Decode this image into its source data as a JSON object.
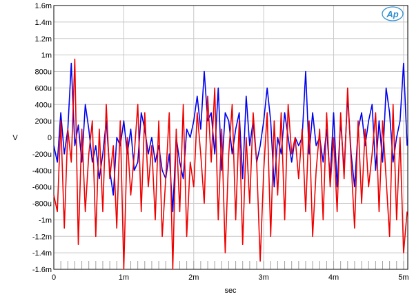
{
  "chart_data": {
    "type": "line",
    "title": "",
    "xlabel": "sec",
    "ylabel": "V",
    "xlim": [
      0,
      0.00506
    ],
    "ylim": [
      -0.0016,
      0.0016
    ],
    "x_ticks": [
      {
        "value": 0,
        "label": "0"
      },
      {
        "value": 0.001,
        "label": "1m"
      },
      {
        "value": 0.002,
        "label": "2m"
      },
      {
        "value": 0.003,
        "label": "3m"
      },
      {
        "value": 0.004,
        "label": "4m"
      },
      {
        "value": 0.005,
        "label": "5m"
      }
    ],
    "y_ticks": [
      {
        "value": 0.0016,
        "label": "1.6m"
      },
      {
        "value": 0.0014,
        "label": "1.4m"
      },
      {
        "value": 0.0012,
        "label": "1.2m"
      },
      {
        "value": 0.001,
        "label": "1m"
      },
      {
        "value": 0.0008,
        "label": "800u"
      },
      {
        "value": 0.0006,
        "label": "600u"
      },
      {
        "value": 0.0004,
        "label": "400u"
      },
      {
        "value": 0.0002,
        "label": "200u"
      },
      {
        "value": 0,
        "label": "0"
      },
      {
        "value": -0.0002,
        "label": "-200u"
      },
      {
        "value": -0.0004,
        "label": "-400u"
      },
      {
        "value": -0.0006,
        "label": "-600u"
      },
      {
        "value": -0.0008,
        "label": "-800u"
      },
      {
        "value": -0.001,
        "label": "-1m"
      },
      {
        "value": -0.0012,
        "label": "-1.2m"
      },
      {
        "value": -0.0014,
        "label": "-1.4m"
      },
      {
        "value": -0.0016,
        "label": "-1.6m"
      }
    ],
    "grid": true,
    "series": [
      {
        "color": "#0000ee",
        "x": [
          0,
          5e-05,
          0.0001,
          0.00015,
          0.0002,
          0.00025,
          0.0003,
          0.00035,
          0.0004,
          0.00045,
          0.0005,
          0.00055,
          0.0006,
          0.00065,
          0.0007,
          0.00075,
          0.0008,
          0.00085,
          0.0009,
          0.00095,
          0.001,
          0.00105,
          0.0011,
          0.00115,
          0.0012,
          0.00125,
          0.0013,
          0.00135,
          0.0014,
          0.00145,
          0.0015,
          0.00155,
          0.0016,
          0.00165,
          0.0017,
          0.00175,
          0.0018,
          0.00185,
          0.0019,
          0.00195,
          0.002,
          0.00205,
          0.0021,
          0.00215,
          0.0022,
          0.00225,
          0.0023,
          0.00235,
          0.0024,
          0.00245,
          0.0025,
          0.00255,
          0.0026,
          0.00265,
          0.0027,
          0.00275,
          0.0028,
          0.00285,
          0.0029,
          0.00295,
          0.003,
          0.00305,
          0.0031,
          0.00315,
          0.0032,
          0.00325,
          0.0033,
          0.00335,
          0.0034,
          0.00345,
          0.0035,
          0.00355,
          0.0036,
          0.00365,
          0.0037,
          0.00375,
          0.0038,
          0.00385,
          0.0039,
          0.00395,
          0.004,
          0.00405,
          0.0041,
          0.00415,
          0.0042,
          0.00425,
          0.0043,
          0.00435,
          0.0044,
          0.00445,
          0.0045,
          0.00455,
          0.0046,
          0.00465,
          0.0047,
          0.00475,
          0.0048,
          0.00485,
          0.0049,
          0.00495,
          0.005,
          0.00505
        ],
        "y": [
          -0.0001,
          -0.0003,
          0.0003,
          -0.0002,
          0.0001,
          0.0009,
          -0.0001,
          0.00015,
          -0.0003,
          0.0004,
          0.0001,
          -0.0003,
          -0.0001,
          -0.0005,
          -0.0002,
          0.0002,
          -0.0004,
          -0.0007,
          0.0,
          -0.0001,
          0.0002,
          -0.0002,
          0.0001,
          -0.0004,
          -0.0003,
          0.0003,
          0.0001,
          -0.0002,
          0.0,
          -0.0003,
          -0.0001,
          -0.0004,
          -0.0005,
          -0.0002,
          -0.0009,
          0.0,
          -0.0003,
          -0.0005,
          0.0001,
          0.0,
          0.0002,
          0.0005,
          0.0001,
          0.0008,
          0.0002,
          0.0003,
          -0.0002,
          0.0006,
          -0.0004,
          0.0003,
          0.0002,
          -0.0002,
          0.0001,
          0.0003,
          -0.0005,
          0.0005,
          -0.0001,
          0.0002,
          -0.0003,
          -0.0001,
          0.0002,
          0.0006,
          0.0002,
          -0.0006,
          0.0,
          -0.0002,
          0.0003,
          0.0,
          -0.0003,
          0.0,
          -0.0001,
          0.0,
          0.0008,
          -0.0002,
          0.0003,
          -0.0001,
          0.0,
          -0.0003,
          0.0001,
          -0.0005,
          0.0003,
          -0.0006,
          0.0002,
          -0.0004,
          0.0005,
          -0.0002,
          -0.0006,
          0.0001,
          0.0003,
          -0.0001,
          0.0002,
          0.0004,
          -0.0004,
          0.0002,
          -0.0003,
          0.0006,
          0.0003,
          -0.0003,
          0.0,
          0.0002,
          0.0009,
          -0.0001
        ],
        "name": ""
      },
      {
        "color": "#ee0000",
        "x": [
          0,
          5e-05,
          0.0001,
          0.00015,
          0.0002,
          0.00025,
          0.0003,
          0.00035,
          0.0004,
          0.00045,
          0.0005,
          0.00055,
          0.0006,
          0.00065,
          0.0007,
          0.00075,
          0.0008,
          0.00085,
          0.0009,
          0.00095,
          0.001,
          0.00105,
          0.0011,
          0.00115,
          0.0012,
          0.00125,
          0.0013,
          0.00135,
          0.0014,
          0.00145,
          0.0015,
          0.00155,
          0.0016,
          0.00165,
          0.0017,
          0.00175,
          0.0018,
          0.00185,
          0.0019,
          0.00195,
          0.002,
          0.00205,
          0.0021,
          0.00215,
          0.0022,
          0.00225,
          0.0023,
          0.00235,
          0.0024,
          0.00245,
          0.0025,
          0.00255,
          0.0026,
          0.00265,
          0.0027,
          0.00275,
          0.0028,
          0.00285,
          0.0029,
          0.00295,
          0.003,
          0.00305,
          0.0031,
          0.00315,
          0.0032,
          0.00325,
          0.0033,
          0.00335,
          0.0034,
          0.00345,
          0.0035,
          0.00355,
          0.0036,
          0.00365,
          0.0037,
          0.00375,
          0.0038,
          0.00385,
          0.0039,
          0.00395,
          0.004,
          0.00405,
          0.0041,
          0.00415,
          0.0042,
          0.00425,
          0.0043,
          0.00435,
          0.0044,
          0.00445,
          0.0045,
          0.00455,
          0.0046,
          0.00465,
          0.0047,
          0.00475,
          0.0048,
          0.00485,
          0.0049,
          0.00495,
          0.005,
          0.00505
        ],
        "y": [
          -0.0007,
          -0.0009,
          0.0002,
          -0.0011,
          0.0001,
          -0.0003,
          0.00095,
          -0.0013,
          0.0001,
          -0.0009,
          -0.0002,
          0.0002,
          -0.0012,
          0.0001,
          -0.0009,
          0.0004,
          -0.0005,
          -0.0001,
          -0.0011,
          0.0002,
          -0.0016,
          0.0,
          -0.0007,
          -0.0002,
          0.0004,
          -0.0009,
          0.0003,
          -0.0006,
          -0.0001,
          -0.001,
          0.0002,
          -0.0012,
          -0.0005,
          0.0003,
          -0.0016,
          0.0001,
          -0.0009,
          0.0004,
          -0.0012,
          -0.0003,
          -0.0006,
          0.0003,
          -0.0002,
          -0.0008,
          0.0005,
          -0.0003,
          0.0006,
          -0.001,
          0.0001,
          -0.0014,
          -0.0002,
          0.0004,
          -0.001,
          0.0002,
          -0.0013,
          0.0,
          -0.0008,
          0.0003,
          -0.0003,
          -0.0015,
          -0.0004,
          0.0003,
          -0.0012,
          0.0002,
          -0.0007,
          0.0003,
          -0.001,
          0.0004,
          -0.0002,
          0.0,
          -0.0005,
          0.0001,
          -0.0009,
          0.0002,
          -0.0012,
          -0.0004,
          0.0001,
          -0.001,
          0.0003,
          -0.0006,
          0.0,
          -0.0009,
          0.0003,
          -0.0005,
          0.0006,
          -0.0003,
          -0.0011,
          0.0002,
          -0.0008,
          0.0001,
          -0.0006,
          -0.0002,
          0.0003,
          -0.0009,
          0.0002,
          -0.0005,
          -0.0012,
          0.0004,
          -0.001,
          0.0,
          -0.0014,
          -0.0009
        ],
        "name": ""
      }
    ]
  },
  "logo": {
    "text": "Ap"
  }
}
